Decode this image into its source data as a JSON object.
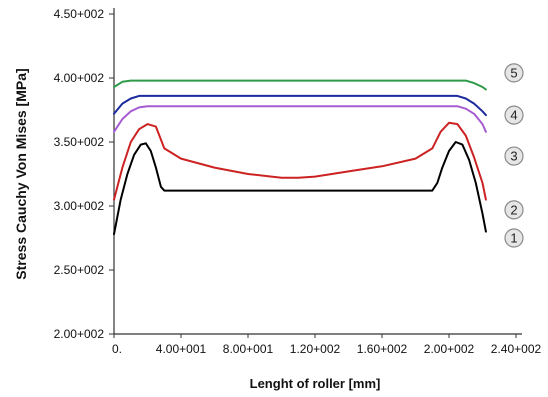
{
  "chart_data": {
    "type": "line",
    "xlabel": "Lenght of roller [mm]",
    "ylabel": "Stress Cauchy Von Mises [MPa]",
    "xlim": [
      0,
      240
    ],
    "ylim": [
      200,
      450
    ],
    "x_ticks": [
      0,
      40,
      80,
      120,
      160,
      200,
      240
    ],
    "x_tick_labels": [
      "0.",
      "4.00+001",
      "8.00+001",
      "1.20+002",
      "1.60+002",
      "2.00+002",
      "2.40+002"
    ],
    "y_ticks": [
      200,
      250,
      300,
      350,
      400,
      450
    ],
    "y_tick_labels": [
      "2.00+002",
      "2.50+002",
      "3.00+002",
      "3.50+002",
      "4.00+002",
      "4.50+002"
    ],
    "grid": false,
    "series": [
      {
        "name": "1",
        "color": "#000000",
        "x": [
          0,
          4,
          8,
          12,
          16,
          19,
          22,
          25,
          28,
          30,
          60,
          90,
          120,
          150,
          180,
          190,
          193,
          196,
          200,
          204,
          208,
          212,
          216,
          220,
          222
        ],
        "y": [
          278,
          305,
          325,
          340,
          348,
          349,
          343,
          330,
          315,
          312,
          312,
          312,
          312,
          312,
          312,
          312,
          318,
          330,
          343,
          350,
          348,
          336,
          318,
          294,
          280
        ]
      },
      {
        "name": "2",
        "color": "#cc2222",
        "x": [
          0,
          5,
          10,
          15,
          20,
          25,
          30,
          40,
          60,
          80,
          100,
          110,
          120,
          140,
          160,
          180,
          190,
          195,
          200,
          205,
          210,
          215,
          220,
          222
        ],
        "y": [
          305,
          330,
          350,
          360,
          364,
          362,
          345,
          337,
          330,
          325,
          322,
          322,
          323,
          327,
          331,
          337,
          345,
          358,
          365,
          364,
          355,
          338,
          318,
          305
        ]
      },
      {
        "name": "3",
        "color": "#a65bd0",
        "x": [
          0,
          5,
          10,
          15,
          20,
          40,
          80,
          120,
          160,
          200,
          205,
          210,
          215,
          220,
          222
        ],
        "y": [
          358,
          368,
          374,
          377,
          378,
          378,
          378,
          378,
          378,
          378,
          378,
          376,
          372,
          364,
          358
        ]
      },
      {
        "name": "4",
        "color": "#1d2b9e",
        "x": [
          0,
          5,
          10,
          15,
          20,
          40,
          80,
          120,
          160,
          200,
          205,
          210,
          215,
          220,
          222
        ],
        "y": [
          372,
          380,
          384,
          386,
          386,
          386,
          386,
          386,
          386,
          386,
          386,
          384,
          380,
          374,
          371
        ]
      },
      {
        "name": "5",
        "color": "#2e9a48",
        "x": [
          0,
          5,
          10,
          15,
          20,
          40,
          80,
          120,
          160,
          200,
          205,
          210,
          215,
          220,
          222
        ],
        "y": [
          393,
          397,
          398,
          398,
          398,
          398,
          398,
          398,
          398,
          398,
          398,
          398,
          396,
          393,
          391
        ]
      }
    ],
    "markers": [
      {
        "label": "1",
        "value": 275
      },
      {
        "label": "2",
        "value": 297
      },
      {
        "label": "3",
        "value": 339
      },
      {
        "label": "4",
        "value": 371
      },
      {
        "label": "5",
        "value": 404
      }
    ]
  }
}
